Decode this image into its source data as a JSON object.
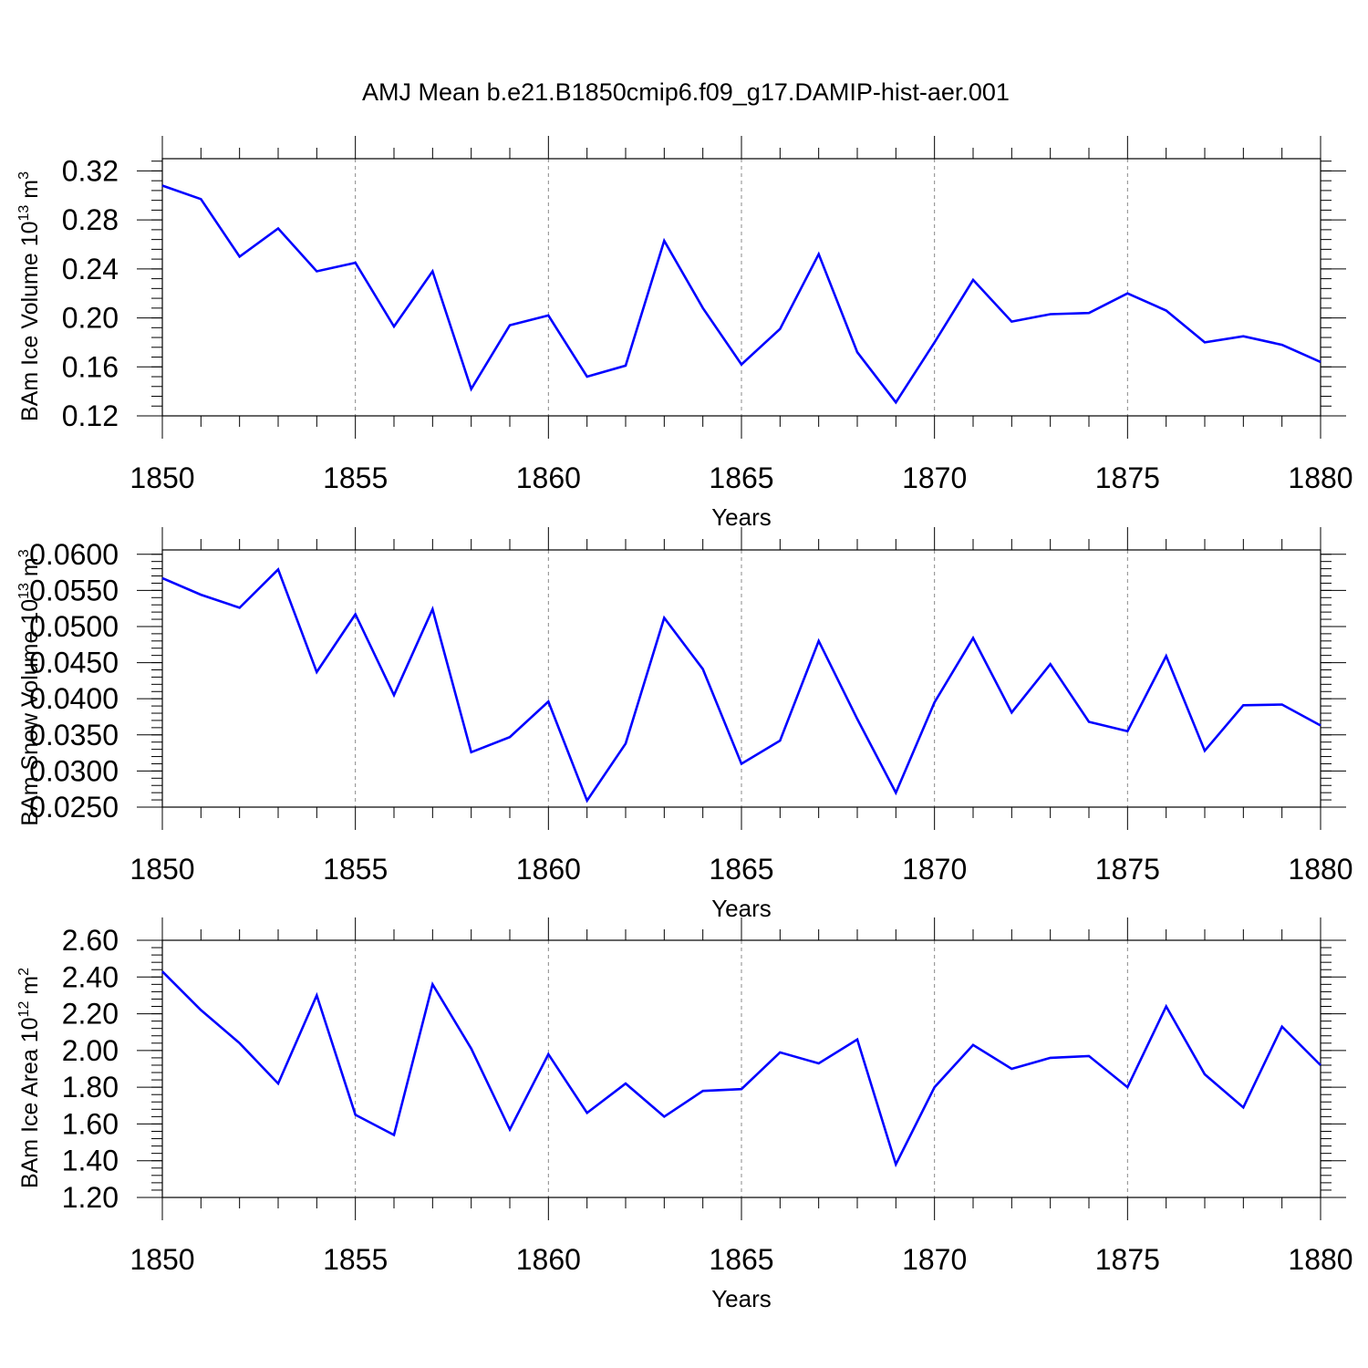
{
  "figure_title": "AMJ Mean b.e21.B1850cmip6.f09_g17.DAMIP-hist-aer.001",
  "line_color": "#0000ff",
  "chart_data": [
    {
      "type": "line",
      "ylabel": "BAm Ice Volume 10",
      "ylabel_sup": "13",
      "ylabel_unit": " m",
      "ylabel_unit_sup": "3",
      "xlabel": "Years",
      "xlim": [
        1850,
        1880
      ],
      "ylim": [
        0.12,
        0.33
      ],
      "xticks": [
        1850,
        1855,
        1860,
        1865,
        1870,
        1875,
        1880
      ],
      "yticks": [
        "0.12",
        "0.16",
        "0.20",
        "0.24",
        "0.28",
        "0.32"
      ],
      "y_minor_step": 0.008,
      "grid": "vertical dashed at major x ticks",
      "x": [
        1850,
        1851,
        1852,
        1853,
        1854,
        1855,
        1856,
        1857,
        1858,
        1859,
        1860,
        1861,
        1862,
        1863,
        1864,
        1865,
        1866,
        1867,
        1868,
        1869,
        1870,
        1871,
        1872,
        1873,
        1874,
        1875,
        1876,
        1877,
        1878,
        1879,
        1880
      ],
      "series": [
        {
          "values": [
            0.308,
            0.297,
            0.25,
            0.273,
            0.238,
            0.245,
            0.193,
            0.238,
            0.142,
            0.194,
            0.202,
            0.152,
            0.161,
            0.263,
            0.208,
            0.162,
            0.191,
            0.252,
            0.172,
            0.131,
            0.18,
            0.231,
            0.197,
            0.203,
            0.204,
            0.22,
            0.206,
            0.18,
            0.185,
            0.178,
            0.164
          ]
        }
      ]
    },
    {
      "type": "line",
      "ylabel": "BAm Snow Volume 10",
      "ylabel_sup": "13",
      "ylabel_unit": " m",
      "ylabel_unit_sup": "3",
      "xlabel": "Years",
      "xlim": [
        1850,
        1880
      ],
      "ylim": [
        0.025,
        0.0606
      ],
      "xticks": [
        1850,
        1855,
        1860,
        1865,
        1870,
        1875,
        1880
      ],
      "yticks": [
        "0.0250",
        "0.0300",
        "0.0350",
        "0.0400",
        "0.0450",
        "0.0500",
        "0.0550",
        "0.0600"
      ],
      "y_minor_step": 0.001,
      "grid": "vertical dashed at major x ticks",
      "x": [
        1850,
        1851,
        1852,
        1853,
        1854,
        1855,
        1856,
        1857,
        1858,
        1859,
        1860,
        1861,
        1862,
        1863,
        1864,
        1865,
        1866,
        1867,
        1868,
        1869,
        1870,
        1871,
        1872,
        1873,
        1874,
        1875,
        1876,
        1877,
        1878,
        1879,
        1880
      ],
      "series": [
        {
          "values": [
            0.0567,
            0.0544,
            0.0526,
            0.0579,
            0.0437,
            0.0517,
            0.0405,
            0.0524,
            0.0326,
            0.0347,
            0.0396,
            0.0259,
            0.0338,
            0.0512,
            0.0441,
            0.031,
            0.0342,
            0.048,
            0.0372,
            0.027,
            0.0395,
            0.0484,
            0.0381,
            0.0448,
            0.0368,
            0.0355,
            0.0459,
            0.0328,
            0.0391,
            0.0392,
            0.0363
          ]
        }
      ]
    },
    {
      "type": "line",
      "ylabel": "BAm Ice Area 10",
      "ylabel_sup": "12",
      "ylabel_unit": " m",
      "ylabel_unit_sup": "2",
      "xlabel": "Years",
      "xlim": [
        1850,
        1880
      ],
      "ylim": [
        1.2,
        2.6
      ],
      "xticks": [
        1850,
        1855,
        1860,
        1865,
        1870,
        1875,
        1880
      ],
      "yticks": [
        "1.20",
        "1.40",
        "1.60",
        "1.80",
        "2.00",
        "2.20",
        "2.40",
        "2.60"
      ],
      "y_minor_step": 0.04,
      "grid": "vertical dashed at major x ticks",
      "x": [
        1850,
        1851,
        1852,
        1853,
        1854,
        1855,
        1856,
        1857,
        1858,
        1859,
        1860,
        1861,
        1862,
        1863,
        1864,
        1865,
        1866,
        1867,
        1868,
        1869,
        1870,
        1871,
        1872,
        1873,
        1874,
        1875,
        1876,
        1877,
        1878,
        1879,
        1880
      ],
      "series": [
        {
          "values": [
            2.43,
            2.22,
            2.04,
            1.82,
            2.3,
            1.65,
            1.54,
            2.36,
            2.01,
            1.57,
            1.98,
            1.66,
            1.82,
            1.64,
            1.78,
            1.79,
            1.99,
            1.93,
            2.06,
            1.38,
            1.8,
            2.03,
            1.9,
            1.96,
            1.97,
            1.8,
            2.24,
            1.87,
            1.69,
            2.13,
            1.92
          ]
        }
      ]
    }
  ]
}
